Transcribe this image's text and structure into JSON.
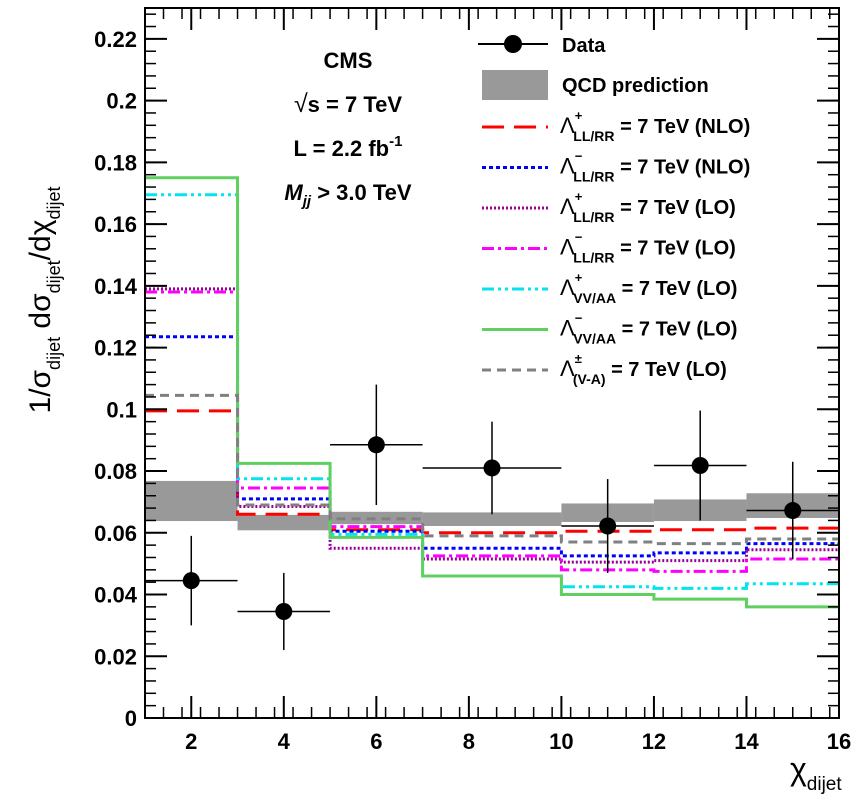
{
  "chart_data": {
    "type": "line",
    "xlabel": "χ",
    "xlabel_sub": "dijet",
    "ylabel_parts": [
      "1/σ",
      "dijet",
      " dσ",
      "dijet",
      "/dχ",
      "dijet"
    ],
    "xlim": [
      1,
      16
    ],
    "ylim": [
      0,
      0.23
    ],
    "x_ticks": [
      2,
      4,
      6,
      8,
      10,
      12,
      14,
      16
    ],
    "y_ticks": [
      0,
      0.02,
      0.04,
      0.06,
      0.08,
      0.1,
      0.12,
      0.14,
      0.16,
      0.18,
      0.2,
      0.22
    ],
    "x_tick_labels": [
      "2",
      "4",
      "6",
      "8",
      "10",
      "12",
      "14",
      "16"
    ],
    "y_tick_labels": [
      "0",
      "0.02",
      "0.04",
      "0.06",
      "0.08",
      "0.1",
      "0.12",
      "0.14",
      "0.16",
      "0.18",
      "0.2",
      "0.22"
    ],
    "bin_edges": [
      1,
      3,
      5,
      7,
      10,
      12,
      14,
      16
    ],
    "annotations": {
      "experiment": "CMS",
      "sqrt_s_symbol": "√",
      "sqrt_s": "s = 7 TeV",
      "lumi_main": "L = 2.2 fb",
      "lumi_sup": "-1",
      "mass_var": "M",
      "mass_sub": "jj",
      "mass_cut": " > 3.0 TeV"
    },
    "data": {
      "name": "Data",
      "x": [
        2,
        4,
        6,
        8.5,
        11,
        13,
        15
      ],
      "xerr": [
        1,
        1,
        1,
        1.5,
        1,
        1,
        1
      ],
      "y": [
        0.0445,
        0.0345,
        0.0885,
        0.081,
        0.0622,
        0.0818,
        0.0672
      ],
      "yerr_low": [
        0.0145,
        0.0125,
        0.0195,
        0.015,
        0.0152,
        0.0178,
        0.0158
      ],
      "yerr_high": [
        0.0145,
        0.0125,
        0.0195,
        0.015,
        0.0152,
        0.0178,
        0.0158
      ]
    },
    "qcd_band": {
      "name": "QCD prediction",
      "color": "#999999",
      "low": [
        0.0638,
        0.0608,
        0.0628,
        0.0622,
        0.0635,
        0.0638,
        0.0648
      ],
      "high": [
        0.0768,
        0.0658,
        0.0668,
        0.0666,
        0.0695,
        0.0708,
        0.0728
      ]
    },
    "series": [
      {
        "name": "Λ",
        "sup": "+",
        "sub": "LL/RR",
        "tail": " = 7 TeV (NLO)",
        "color": "#ff0000",
        "dash": "22,10",
        "width": 3,
        "values": [
          0.0995,
          0.066,
          0.061,
          0.06,
          0.0605,
          0.061,
          0.0615
        ]
      },
      {
        "name": "Λ",
        "sup": "−",
        "sub": "LL/RR",
        "tail": " = 7 TeV (NLO)",
        "color": "#0000ff",
        "dash": "4,3",
        "width": 3,
        "values": [
          0.1235,
          0.071,
          0.0605,
          0.055,
          0.0525,
          0.0535,
          0.0565
        ]
      },
      {
        "name": "Λ",
        "sup": "+",
        "sub": "LL/RR",
        "tail": " = 7 TeV (LO)",
        "color": "#990099",
        "dash": "2,2",
        "width": 3,
        "values": [
          0.139,
          0.0685,
          0.055,
          0.0515,
          0.0505,
          0.051,
          0.0545
        ]
      },
      {
        "name": "Λ",
        "sup": "−",
        "sub": "LL/RR",
        "tail": " = 7 TeV (LO)",
        "color": "#ff00ff",
        "dash": "12,4,3,4",
        "width": 3,
        "values": [
          0.138,
          0.0745,
          0.062,
          0.0525,
          0.048,
          0.0475,
          0.0515
        ]
      },
      {
        "name": "Λ",
        "sup": "+",
        "sub": "VV/AA",
        "tail": " = 7 TeV (LO)",
        "color": "#00e5ee",
        "dash": "12,4,3,4,3,4",
        "width": 3,
        "values": [
          0.1695,
          0.0775,
          0.0595,
          0.046,
          0.0425,
          0.042,
          0.0435
        ]
      },
      {
        "name": "Λ",
        "sup": "−",
        "sub": "VV/AA",
        "tail": " = 7 TeV (LO)",
        "color": "#5fcf5f",
        "dash": "",
        "width": 3,
        "values": [
          0.175,
          0.0825,
          0.0585,
          0.046,
          0.04,
          0.0385,
          0.036
        ]
      },
      {
        "name": "Λ",
        "sup": "±",
        "sub": "(V-A)",
        "tail": "   = 7 TeV (LO)",
        "color": "#808080",
        "dash": "9,6",
        "width": 3,
        "values": [
          0.1045,
          0.069,
          0.0645,
          0.059,
          0.057,
          0.0565,
          0.058
        ]
      }
    ]
  }
}
